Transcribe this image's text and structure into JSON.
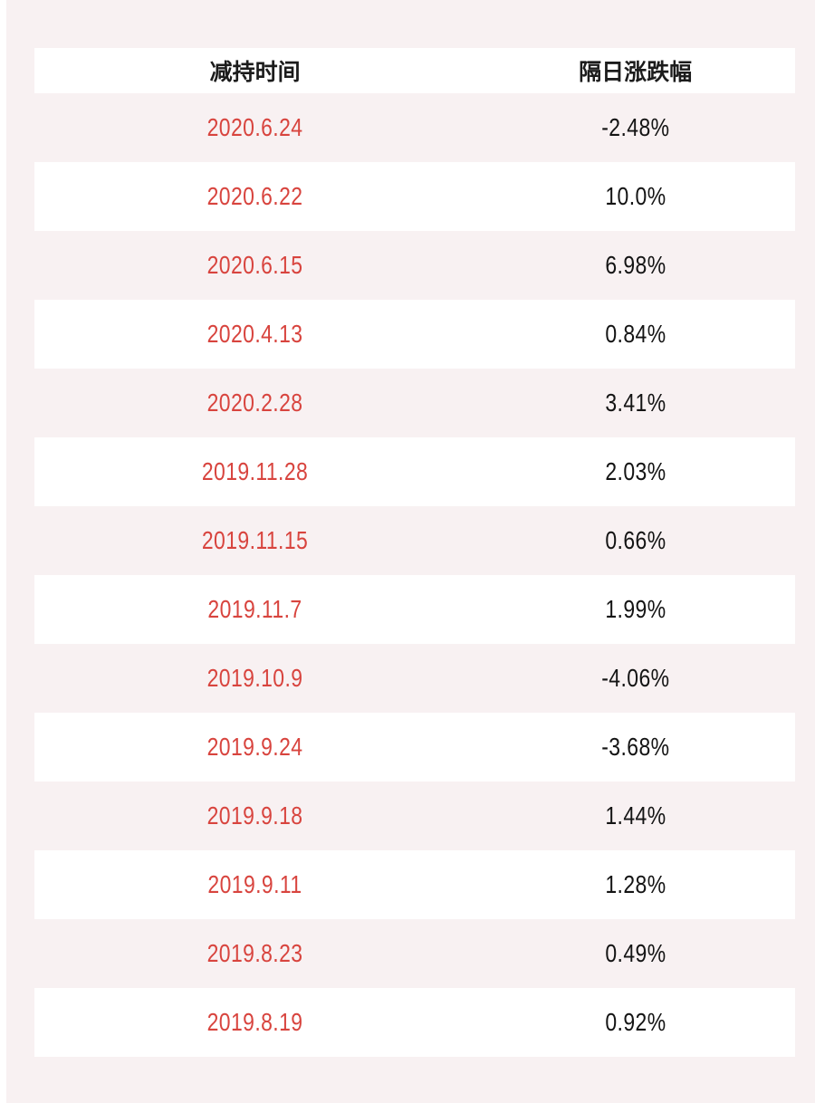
{
  "colors": {
    "page_background": "#f8f1f2",
    "row_white": "#ffffff",
    "date_red": "#d8443e",
    "value_black": "#141414",
    "header_black": "#1c1c1c"
  },
  "table": {
    "headers": [
      {
        "label": "减持时间"
      },
      {
        "label": "隔日涨跌幅"
      }
    ],
    "rows": [
      {
        "date": "2020.6.24",
        "change": "-2.48%"
      },
      {
        "date": "2020.6.22",
        "change": "10.0%"
      },
      {
        "date": "2020.6.15",
        "change": "6.98%"
      },
      {
        "date": "2020.4.13",
        "change": "0.84%"
      },
      {
        "date": "2020.2.28",
        "change": "3.41%"
      },
      {
        "date": "2019.11.28",
        "change": "2.03%"
      },
      {
        "date": "2019.11.15",
        "change": "0.66%"
      },
      {
        "date": "2019.11.7",
        "change": "1.99%"
      },
      {
        "date": "2019.10.9",
        "change": "-4.06%"
      },
      {
        "date": "2019.9.24",
        "change": "-3.68%"
      },
      {
        "date": "2019.9.18",
        "change": "1.44%"
      },
      {
        "date": "2019.9.11",
        "change": "1.28%"
      },
      {
        "date": "2019.8.23",
        "change": "0.49%"
      },
      {
        "date": "2019.8.19",
        "change": "0.92%"
      }
    ]
  },
  "chart_data": {
    "type": "table",
    "title": "",
    "columns": [
      "减持时间",
      "隔日涨跌幅"
    ],
    "categories": [
      "2020.6.24",
      "2020.6.22",
      "2020.6.15",
      "2020.4.13",
      "2020.2.28",
      "2019.11.28",
      "2019.11.15",
      "2019.11.7",
      "2019.10.9",
      "2019.9.24",
      "2019.9.18",
      "2019.9.11",
      "2019.8.23",
      "2019.8.19"
    ],
    "series": [
      {
        "name": "隔日涨跌幅(%)",
        "values": [
          -2.48,
          10.0,
          6.98,
          0.84,
          3.41,
          2.03,
          0.66,
          1.99,
          -4.06,
          -3.68,
          1.44,
          1.28,
          0.49,
          0.92
        ]
      }
    ],
    "layout_hints": {
      "alternating_row_bands": true,
      "date_text_color": "#d8443e",
      "value_text_color": "#141414",
      "legend": "none",
      "grid": "off"
    }
  }
}
